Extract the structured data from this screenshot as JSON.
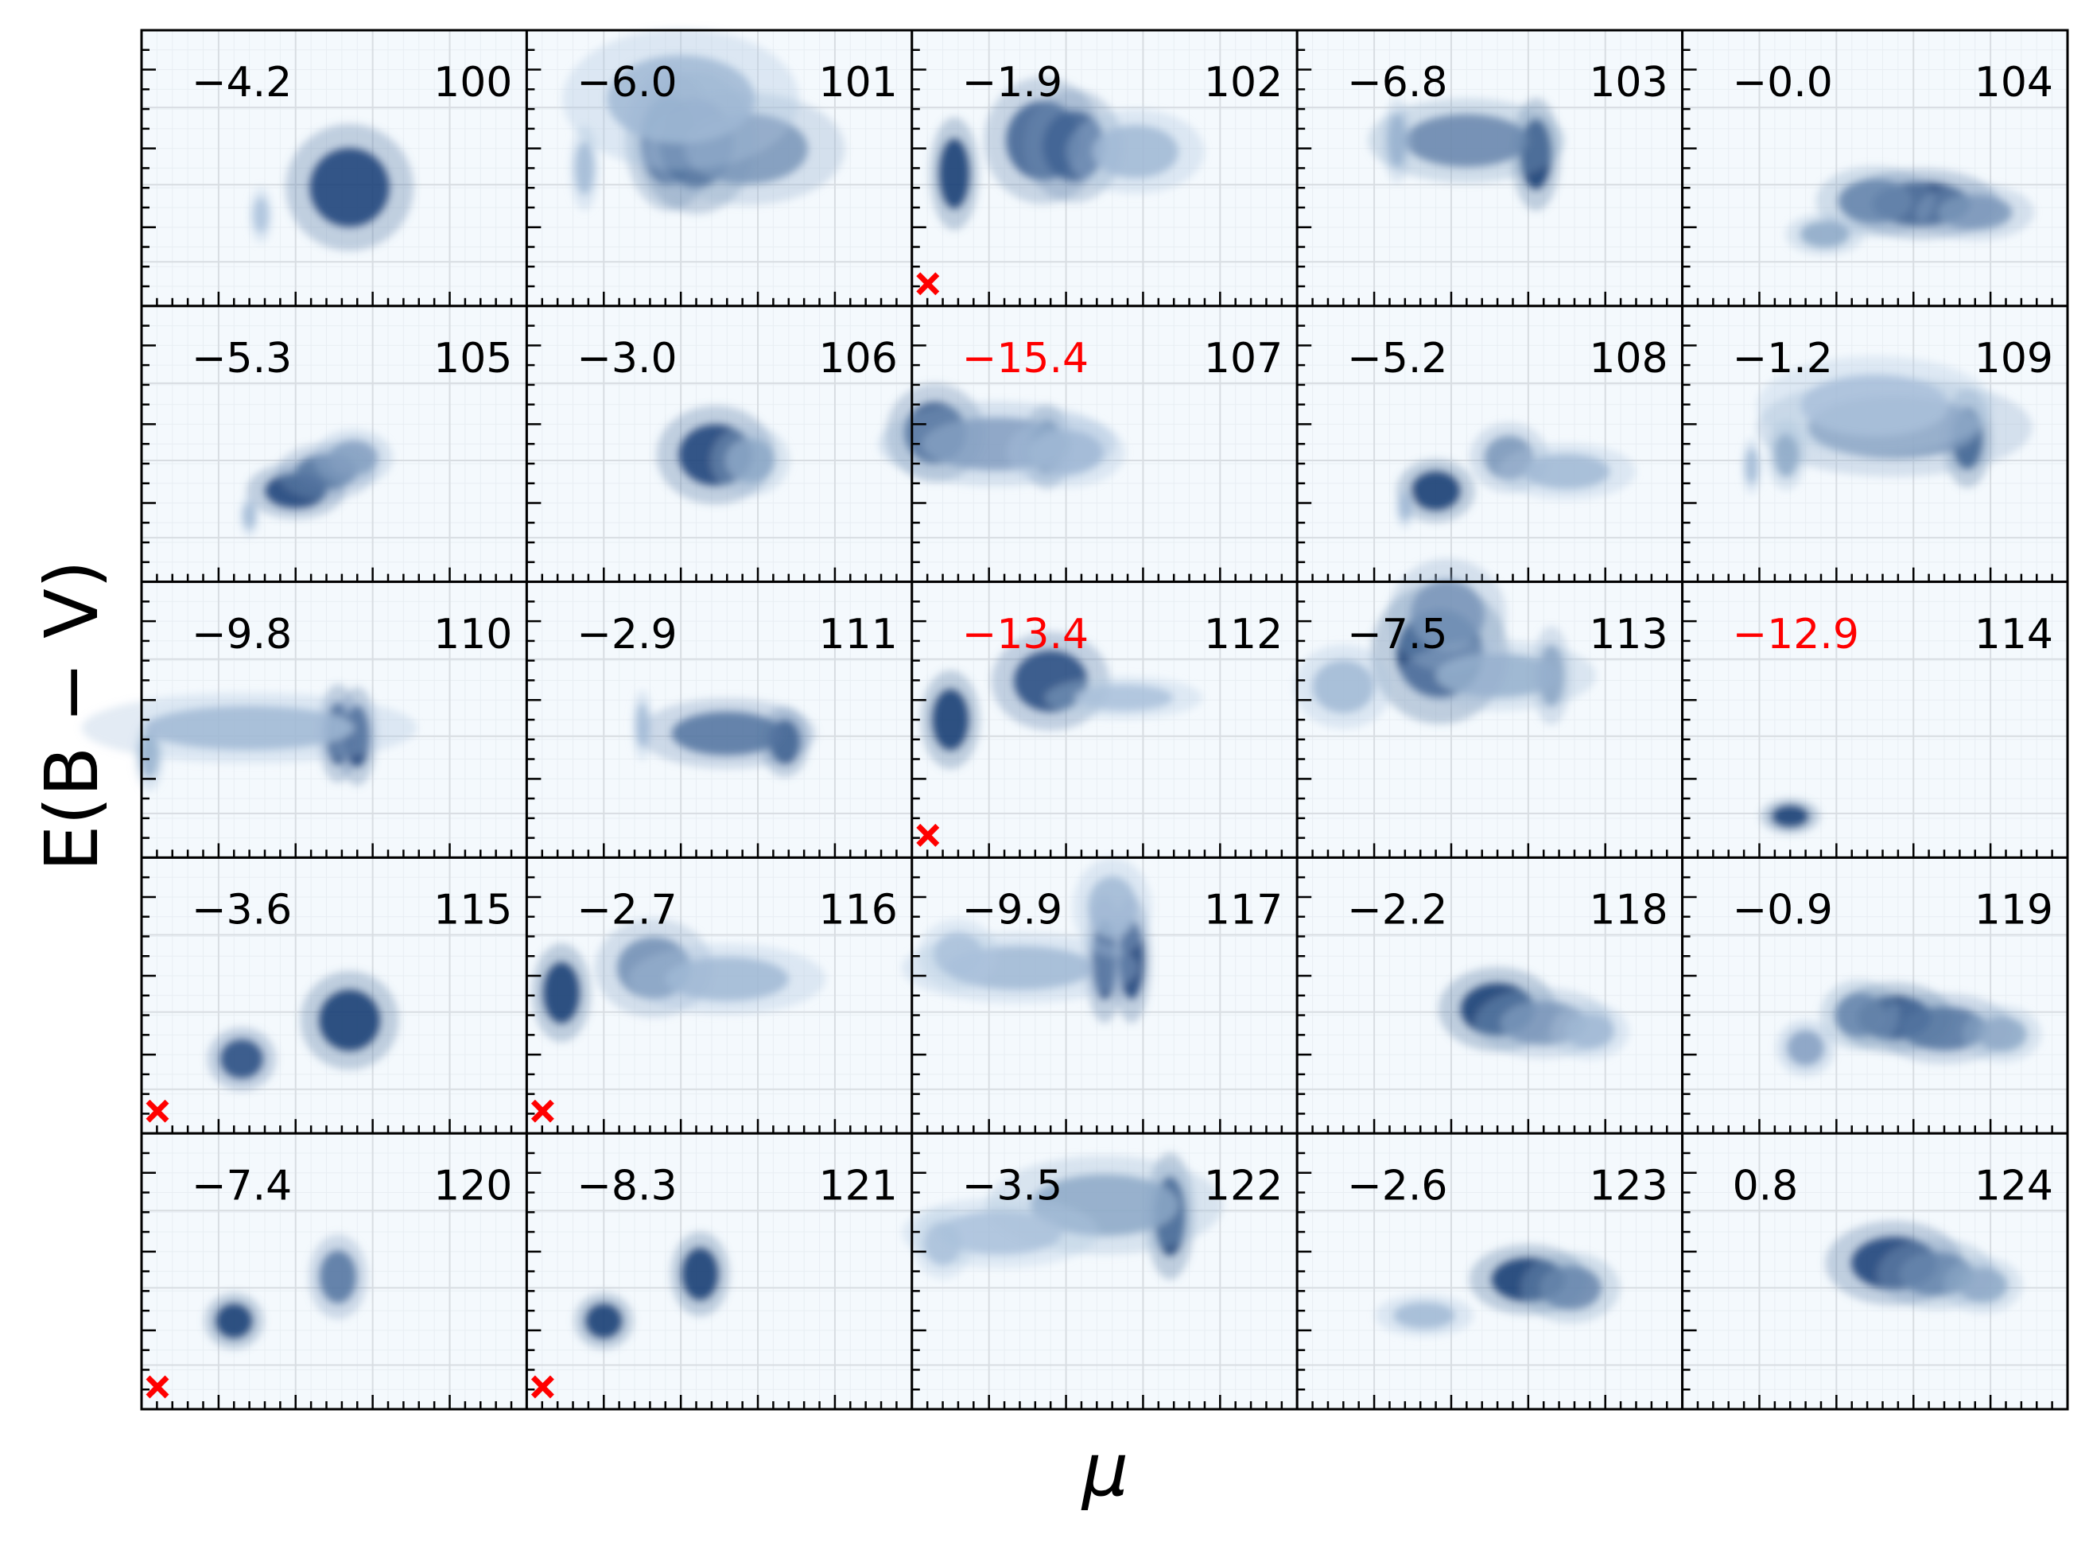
{
  "colors": {
    "highlight": "#ff0000",
    "normal": "#000000",
    "colormap": "Blues"
  },
  "chart_data": {
    "type": "heatmap",
    "grid": {
      "rows": 5,
      "cols": 5
    },
    "xlabel": "μ",
    "ylabel": "E(B − V)",
    "panels": [
      {
        "id": "100",
        "value": "−4.2",
        "highlight": false,
        "marker": false,
        "blobs": [
          {
            "x": 0.54,
            "y": 0.57,
            "sx": 0.065,
            "sy": 0.09,
            "a": 0.9
          },
          {
            "x": 0.31,
            "y": 0.67,
            "sx": 0.012,
            "sy": 0.04,
            "a": 0.15
          }
        ]
      },
      {
        "id": "101",
        "value": "−6.0",
        "highlight": false,
        "marker": false,
        "blobs": [
          {
            "x": 0.37,
            "y": 0.4,
            "sx": 0.045,
            "sy": 0.1,
            "a": 0.7
          },
          {
            "x": 0.44,
            "y": 0.41,
            "sx": 0.06,
            "sy": 0.1,
            "a": 0.8
          },
          {
            "x": 0.57,
            "y": 0.43,
            "sx": 0.1,
            "sy": 0.08,
            "a": 0.4
          },
          {
            "x": 0.15,
            "y": 0.5,
            "sx": 0.015,
            "sy": 0.06,
            "a": 0.2
          },
          {
            "x": 0.4,
            "y": 0.25,
            "sx": 0.12,
            "sy": 0.1,
            "a": 0.2
          }
        ]
      },
      {
        "id": "102",
        "value": "−1.9",
        "highlight": false,
        "marker": true,
        "blobs": [
          {
            "x": 0.11,
            "y": 0.52,
            "sx": 0.025,
            "sy": 0.08,
            "a": 0.95
          },
          {
            "x": 0.34,
            "y": 0.4,
            "sx": 0.06,
            "sy": 0.09,
            "a": 0.7
          },
          {
            "x": 0.42,
            "y": 0.42,
            "sx": 0.05,
            "sy": 0.08,
            "a": 0.7
          },
          {
            "x": 0.58,
            "y": 0.44,
            "sx": 0.07,
            "sy": 0.06,
            "a": 0.2
          }
        ]
      },
      {
        "id": "103",
        "value": "−6.8",
        "highlight": false,
        "marker": false,
        "blobs": [
          {
            "x": 0.62,
            "y": 0.45,
            "sx": 0.025,
            "sy": 0.08,
            "a": 0.95
          },
          {
            "x": 0.44,
            "y": 0.4,
            "sx": 0.1,
            "sy": 0.06,
            "a": 0.5
          },
          {
            "x": 0.26,
            "y": 0.4,
            "sx": 0.015,
            "sy": 0.06,
            "a": 0.25
          }
        ]
      },
      {
        "id": "104",
        "value": "−0.0",
        "highlight": false,
        "marker": false,
        "blobs": [
          {
            "x": 0.62,
            "y": 0.63,
            "sx": 0.08,
            "sy": 0.05,
            "a": 0.9
          },
          {
            "x": 0.5,
            "y": 0.62,
            "sx": 0.06,
            "sy": 0.05,
            "a": 0.5
          },
          {
            "x": 0.76,
            "y": 0.66,
            "sx": 0.06,
            "sy": 0.04,
            "a": 0.4
          },
          {
            "x": 0.37,
            "y": 0.74,
            "sx": 0.04,
            "sy": 0.03,
            "a": 0.3
          }
        ]
      },
      {
        "id": "105",
        "value": "−5.3",
        "highlight": false,
        "marker": false,
        "blobs": [
          {
            "x": 0.4,
            "y": 0.67,
            "sx": 0.05,
            "sy": 0.04,
            "a": 0.9
          },
          {
            "x": 0.48,
            "y": 0.6,
            "sx": 0.05,
            "sy": 0.04,
            "a": 0.6
          },
          {
            "x": 0.55,
            "y": 0.55,
            "sx": 0.04,
            "sy": 0.04,
            "a": 0.35
          },
          {
            "x": 0.28,
            "y": 0.76,
            "sx": 0.01,
            "sy": 0.03,
            "a": 0.2
          }
        ]
      },
      {
        "id": "106",
        "value": "−3.0",
        "highlight": false,
        "marker": false,
        "blobs": [
          {
            "x": 0.49,
            "y": 0.54,
            "sx": 0.06,
            "sy": 0.07,
            "a": 0.9
          },
          {
            "x": 0.58,
            "y": 0.56,
            "sx": 0.04,
            "sy": 0.05,
            "a": 0.3
          }
        ]
      },
      {
        "id": "107",
        "value": "−15.4",
        "highlight": true,
        "marker": false,
        "blobs": [
          {
            "x": 0.06,
            "y": 0.46,
            "sx": 0.05,
            "sy": 0.07,
            "a": 0.8
          },
          {
            "x": 0.35,
            "y": 0.51,
            "sx": 0.025,
            "sy": 0.06,
            "a": 0.8
          },
          {
            "x": 0.22,
            "y": 0.5,
            "sx": 0.12,
            "sy": 0.06,
            "a": 0.35
          },
          {
            "x": 0.4,
            "y": 0.53,
            "sx": 0.06,
            "sy": 0.05,
            "a": 0.2
          }
        ]
      },
      {
        "id": "108",
        "value": "−5.2",
        "highlight": false,
        "marker": false,
        "blobs": [
          {
            "x": 0.36,
            "y": 0.67,
            "sx": 0.04,
            "sy": 0.045,
            "a": 0.95
          },
          {
            "x": 0.55,
            "y": 0.55,
            "sx": 0.04,
            "sy": 0.05,
            "a": 0.4
          },
          {
            "x": 0.7,
            "y": 0.6,
            "sx": 0.07,
            "sy": 0.04,
            "a": 0.2
          },
          {
            "x": 0.28,
            "y": 0.73,
            "sx": 0.01,
            "sy": 0.03,
            "a": 0.2
          }
        ]
      },
      {
        "id": "109",
        "value": "−1.2",
        "highlight": false,
        "marker": false,
        "blobs": [
          {
            "x": 0.74,
            "y": 0.48,
            "sx": 0.025,
            "sy": 0.07,
            "a": 0.95
          },
          {
            "x": 0.55,
            "y": 0.44,
            "sx": 0.14,
            "sy": 0.07,
            "a": 0.4
          },
          {
            "x": 0.27,
            "y": 0.54,
            "sx": 0.02,
            "sy": 0.05,
            "a": 0.3
          },
          {
            "x": 0.18,
            "y": 0.58,
            "sx": 0.01,
            "sy": 0.04,
            "a": 0.2
          },
          {
            "x": 0.5,
            "y": 0.36,
            "sx": 0.12,
            "sy": 0.07,
            "a": 0.15
          }
        ]
      },
      {
        "id": "110",
        "value": "−9.8",
        "highlight": false,
        "marker": false,
        "blobs": [
          {
            "x": 0.51,
            "y": 0.55,
            "sx": 0.02,
            "sy": 0.07,
            "a": 0.9
          },
          {
            "x": 0.56,
            "y": 0.56,
            "sx": 0.02,
            "sy": 0.07,
            "a": 0.9
          },
          {
            "x": 0.28,
            "y": 0.53,
            "sx": 0.17,
            "sy": 0.05,
            "a": 0.2
          },
          {
            "x": 0.02,
            "y": 0.63,
            "sx": 0.015,
            "sy": 0.05,
            "a": 0.25
          }
        ]
      },
      {
        "id": "111",
        "value": "−2.9",
        "highlight": false,
        "marker": false,
        "blobs": [
          {
            "x": 0.67,
            "y": 0.58,
            "sx": 0.025,
            "sy": 0.05,
            "a": 0.9
          },
          {
            "x": 0.52,
            "y": 0.55,
            "sx": 0.09,
            "sy": 0.05,
            "a": 0.6
          },
          {
            "x": 0.3,
            "y": 0.52,
            "sx": 0.01,
            "sy": 0.05,
            "a": 0.2
          }
        ]
      },
      {
        "id": "112",
        "value": "−13.4",
        "highlight": true,
        "marker": true,
        "blobs": [
          {
            "x": 0.1,
            "y": 0.5,
            "sx": 0.03,
            "sy": 0.07,
            "a": 0.95
          },
          {
            "x": 0.36,
            "y": 0.36,
            "sx": 0.06,
            "sy": 0.07,
            "a": 0.85
          },
          {
            "x": 0.55,
            "y": 0.42,
            "sx": 0.08,
            "sy": 0.03,
            "a": 0.15
          }
        ]
      },
      {
        "id": "113",
        "value": "−7.5",
        "highlight": false,
        "marker": false,
        "blobs": [
          {
            "x": 0.37,
            "y": 0.26,
            "sx": 0.07,
            "sy": 0.1,
            "a": 0.95
          },
          {
            "x": 0.39,
            "y": 0.12,
            "sx": 0.06,
            "sy": 0.08,
            "a": 0.4
          },
          {
            "x": 0.66,
            "y": 0.34,
            "sx": 0.02,
            "sy": 0.07,
            "a": 0.4
          },
          {
            "x": 0.12,
            "y": 0.38,
            "sx": 0.05,
            "sy": 0.06,
            "a": 0.2
          },
          {
            "x": 0.52,
            "y": 0.34,
            "sx": 0.1,
            "sy": 0.05,
            "a": 0.25
          }
        ]
      },
      {
        "id": "114",
        "value": "−12.9",
        "highlight": true,
        "marker": false,
        "blobs": [
          {
            "x": 0.28,
            "y": 0.85,
            "sx": 0.03,
            "sy": 0.025,
            "a": 0.95
          }
        ]
      },
      {
        "id": "115",
        "value": "−3.6",
        "highlight": false,
        "marker": true,
        "blobs": [
          {
            "x": 0.54,
            "y": 0.59,
            "sx": 0.05,
            "sy": 0.07,
            "a": 0.95
          },
          {
            "x": 0.26,
            "y": 0.73,
            "sx": 0.035,
            "sy": 0.045,
            "a": 0.85
          }
        ]
      },
      {
        "id": "116",
        "value": "−2.7",
        "highlight": false,
        "marker": true,
        "blobs": [
          {
            "x": 0.09,
            "y": 0.49,
            "sx": 0.03,
            "sy": 0.07,
            "a": 0.95
          },
          {
            "x": 0.33,
            "y": 0.4,
            "sx": 0.06,
            "sy": 0.07,
            "a": 0.45
          },
          {
            "x": 0.52,
            "y": 0.44,
            "sx": 0.1,
            "sy": 0.05,
            "a": 0.2
          }
        ]
      },
      {
        "id": "117",
        "value": "−9.9",
        "highlight": false,
        "marker": false,
        "blobs": [
          {
            "x": 0.5,
            "y": 0.37,
            "sx": 0.02,
            "sy": 0.09,
            "a": 0.9
          },
          {
            "x": 0.57,
            "y": 0.37,
            "sx": 0.02,
            "sy": 0.09,
            "a": 0.9
          },
          {
            "x": 0.52,
            "y": 0.18,
            "sx": 0.04,
            "sy": 0.07,
            "a": 0.2
          },
          {
            "x": 0.28,
            "y": 0.4,
            "sx": 0.12,
            "sy": 0.05,
            "a": 0.2
          },
          {
            "x": 0.12,
            "y": 0.35,
            "sx": 0.04,
            "sy": 0.05,
            "a": 0.15
          }
        ]
      },
      {
        "id": "118",
        "value": "−2.2",
        "highlight": false,
        "marker": false,
        "blobs": [
          {
            "x": 0.52,
            "y": 0.55,
            "sx": 0.06,
            "sy": 0.06,
            "a": 0.95
          },
          {
            "x": 0.64,
            "y": 0.6,
            "sx": 0.07,
            "sy": 0.05,
            "a": 0.4
          },
          {
            "x": 0.76,
            "y": 0.63,
            "sx": 0.04,
            "sy": 0.04,
            "a": 0.2
          }
        ]
      },
      {
        "id": "119",
        "value": "−0.9",
        "highlight": false,
        "marker": false,
        "blobs": [
          {
            "x": 0.55,
            "y": 0.58,
            "sx": 0.06,
            "sy": 0.05,
            "a": 0.95
          },
          {
            "x": 0.68,
            "y": 0.62,
            "sx": 0.07,
            "sy": 0.05,
            "a": 0.6
          },
          {
            "x": 0.46,
            "y": 0.57,
            "sx": 0.04,
            "sy": 0.05,
            "a": 0.5
          },
          {
            "x": 0.83,
            "y": 0.64,
            "sx": 0.04,
            "sy": 0.04,
            "a": 0.3
          },
          {
            "x": 0.32,
            "y": 0.69,
            "sx": 0.03,
            "sy": 0.04,
            "a": 0.35
          }
        ]
      },
      {
        "id": "120",
        "value": "−7.4",
        "highlight": false,
        "marker": true,
        "blobs": [
          {
            "x": 0.51,
            "y": 0.52,
            "sx": 0.03,
            "sy": 0.06,
            "a": 0.6
          },
          {
            "x": 0.24,
            "y": 0.68,
            "sx": 0.03,
            "sy": 0.04,
            "a": 0.95
          }
        ]
      },
      {
        "id": "121",
        "value": "−8.3",
        "highlight": false,
        "marker": true,
        "blobs": [
          {
            "x": 0.45,
            "y": 0.51,
            "sx": 0.03,
            "sy": 0.06,
            "a": 0.95
          },
          {
            "x": 0.2,
            "y": 0.68,
            "sx": 0.03,
            "sy": 0.04,
            "a": 0.95
          }
        ]
      },
      {
        "id": "122",
        "value": "−3.5",
        "highlight": false,
        "marker": false,
        "blobs": [
          {
            "x": 0.67,
            "y": 0.3,
            "sx": 0.025,
            "sy": 0.09,
            "a": 0.95
          },
          {
            "x": 0.5,
            "y": 0.26,
            "sx": 0.12,
            "sy": 0.07,
            "a": 0.3
          },
          {
            "x": 0.23,
            "y": 0.36,
            "sx": 0.1,
            "sy": 0.05,
            "a": 0.15
          },
          {
            "x": 0.08,
            "y": 0.4,
            "sx": 0.03,
            "sy": 0.05,
            "a": 0.15
          }
        ]
      },
      {
        "id": "123",
        "value": "−2.6",
        "highlight": false,
        "marker": false,
        "blobs": [
          {
            "x": 0.6,
            "y": 0.53,
            "sx": 0.06,
            "sy": 0.05,
            "a": 0.95
          },
          {
            "x": 0.71,
            "y": 0.56,
            "sx": 0.05,
            "sy": 0.05,
            "a": 0.5
          },
          {
            "x": 0.33,
            "y": 0.66,
            "sx": 0.05,
            "sy": 0.03,
            "a": 0.2
          }
        ]
      },
      {
        "id": "124",
        "value": "0.8",
        "highlight": false,
        "marker": false,
        "blobs": [
          {
            "x": 0.55,
            "y": 0.47,
            "sx": 0.07,
            "sy": 0.06,
            "a": 0.9
          },
          {
            "x": 0.66,
            "y": 0.51,
            "sx": 0.06,
            "sy": 0.05,
            "a": 0.5
          },
          {
            "x": 0.78,
            "y": 0.55,
            "sx": 0.04,
            "sy": 0.04,
            "a": 0.3
          }
        ]
      }
    ]
  }
}
